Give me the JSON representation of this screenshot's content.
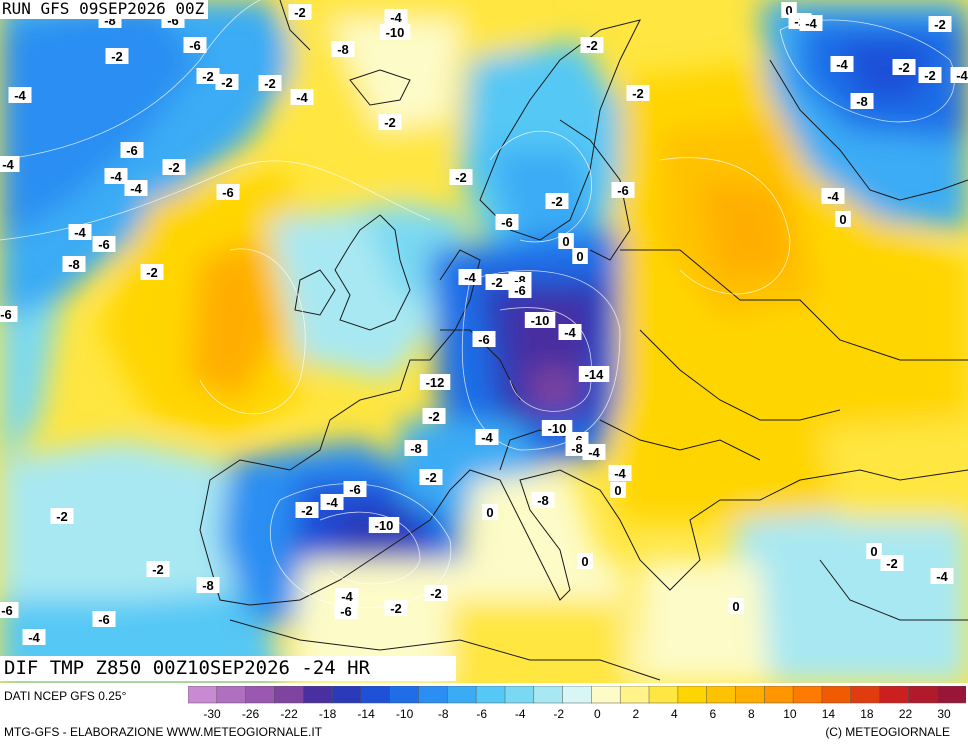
{
  "header": {
    "run_title": "RUN GFS 09SEP2026 00Z",
    "map_title": "DIF TMP Z850 00Z10SEP2026 -24 HR"
  },
  "footer": {
    "source": "DATI NCEP GFS 0.25°",
    "credit_left": "MTG-GFS - ELABORAZIONE WWW.METEOGIORNALE.IT",
    "credit_right": "(C) METEOGIORNALE"
  },
  "legend": {
    "tick_labels": [
      "-30",
      "-26",
      "-22",
      "-18",
      "-14",
      "-10",
      "-8",
      "-6",
      "-4",
      "-2",
      "0",
      "2",
      "4",
      "6",
      "8",
      "10",
      "14",
      "18",
      "22",
      "30"
    ],
    "colors": [
      "#c88ad0",
      "#b070c0",
      "#9a58b0",
      "#7e44a0",
      "#4a2fa0",
      "#2a3ab8",
      "#1e50d8",
      "#1f6ee8",
      "#2a8ef2",
      "#3aacf5",
      "#55c8f5",
      "#7ad9f2",
      "#a8e8f2",
      "#d8f6f6",
      "#fdfbc8",
      "#fff38a",
      "#ffe640",
      "#ffd500",
      "#ffc200",
      "#ffae00",
      "#ff9600",
      "#ff7a00",
      "#f05a00",
      "#e03c10",
      "#cc2020",
      "#b01a2a",
      "#981638"
    ]
  },
  "map_labels": [
    "-8",
    "-6",
    "-2",
    "-4",
    "-6",
    "-2",
    "-8",
    "-10",
    "-4",
    "-2",
    "-2",
    "-2",
    "-4",
    "-2",
    "-6",
    "-4",
    "-2",
    "-4",
    "-6",
    "-4",
    "-2",
    "-6",
    "-8",
    "-6",
    "-4",
    "-2",
    "-2",
    "0",
    "-2",
    "-4",
    "-2",
    "-4",
    "-2",
    "-2",
    "-4",
    "-8",
    "-4",
    "-6",
    "-2",
    "-2",
    "-6",
    "0",
    "0",
    "-4",
    "-2",
    "-8",
    "-6",
    "-10",
    "-4",
    "-6",
    "-12",
    "-14",
    "-2",
    "-8",
    "-4",
    "-10",
    "-6",
    "-8",
    "-4",
    "-2",
    "-6",
    "-8",
    "0",
    "-4",
    "-2",
    "0",
    "-2",
    "-10",
    "-2",
    "-8",
    "-6",
    "-4",
    "-6",
    "-2",
    "-2",
    "-4",
    "0",
    "0",
    "0",
    "-2",
    "-4",
    "0",
    "-6",
    "-4"
  ],
  "colors": {
    "coast": "#1a1a1a",
    "contour": "#ffffff"
  }
}
